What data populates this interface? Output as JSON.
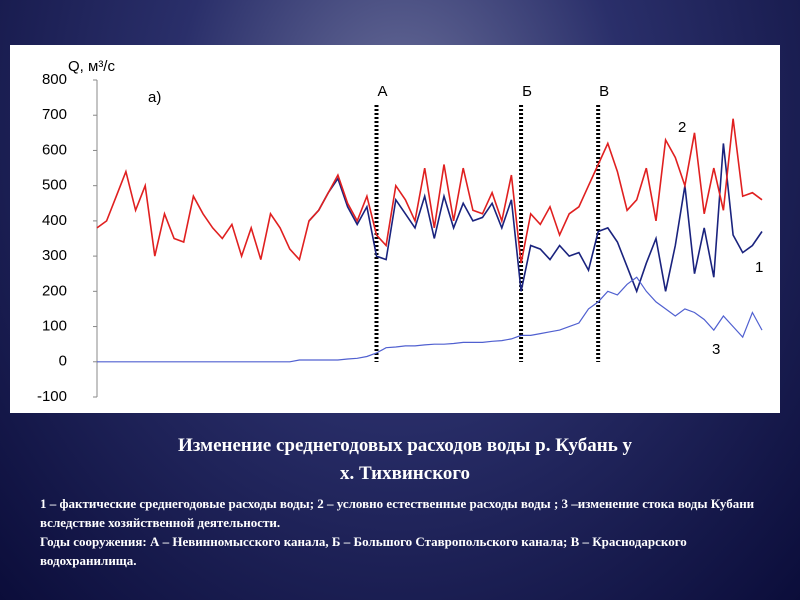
{
  "chart_data": {
    "type": "line",
    "title": "а)",
    "y_label": "Q, м³/с",
    "categories": [
      null,
      null,
      null,
      null,
      null,
      null,
      null,
      null,
      null,
      null,
      null,
      null,
      null,
      null,
      null,
      null,
      null,
      null,
      null,
      null,
      null,
      null,
      null,
      null,
      null,
      null,
      null,
      null,
      null,
      "А",
      null,
      null,
      null,
      null,
      null,
      null,
      null,
      null,
      null,
      null,
      null,
      null,
      null,
      null,
      "Б",
      null,
      null,
      null,
      null,
      null,
      null,
      null,
      "В",
      null,
      null,
      null,
      null,
      null,
      null,
      null,
      null,
      null,
      null,
      null,
      null,
      null,
      null,
      null,
      null,
      null
    ],
    "ylim": [
      -100,
      800
    ],
    "yticks": [
      -100,
      0,
      100,
      200,
      300,
      400,
      500,
      600,
      700,
      800
    ],
    "series": [
      {
        "name": "1",
        "color": "#1a237e",
        "values": [
          null,
          null,
          null,
          null,
          null,
          null,
          null,
          null,
          null,
          null,
          null,
          null,
          null,
          null,
          null,
          null,
          null,
          null,
          null,
          null,
          null,
          null,
          400,
          430,
          480,
          520,
          440,
          390,
          440,
          300,
          290,
          460,
          420,
          380,
          470,
          350,
          470,
          380,
          450,
          400,
          410,
          450,
          380,
          460,
          200,
          330,
          320,
          290,
          330,
          300,
          310,
          260,
          370,
          380,
          340,
          270,
          200,
          280,
          350,
          200,
          330,
          500,
          250,
          380,
          240,
          620,
          360,
          310,
          330,
          370
        ]
      },
      {
        "name": "2",
        "color": "#e02020",
        "values": [
          380,
          400,
          470,
          540,
          430,
          500,
          300,
          420,
          350,
          340,
          470,
          420,
          380,
          350,
          390,
          300,
          380,
          290,
          420,
          380,
          320,
          290,
          400,
          430,
          480,
          530,
          450,
          400,
          470,
          360,
          330,
          500,
          460,
          400,
          550,
          380,
          560,
          400,
          550,
          430,
          420,
          480,
          400,
          530,
          280,
          420,
          390,
          440,
          360,
          420,
          440,
          500,
          560,
          620,
          540,
          430,
          460,
          550,
          400,
          630,
          580,
          500,
          650,
          420,
          550,
          430,
          690,
          470,
          480,
          460
        ]
      },
      {
        "name": "3",
        "color": "#5060d0",
        "values": [
          0,
          0,
          0,
          0,
          0,
          0,
          0,
          0,
          0,
          0,
          0,
          0,
          0,
          0,
          0,
          0,
          0,
          0,
          0,
          0,
          0,
          5,
          5,
          5,
          5,
          5,
          8,
          10,
          15,
          25,
          40,
          42,
          45,
          45,
          48,
          50,
          50,
          52,
          55,
          55,
          55,
          58,
          60,
          65,
          75,
          75,
          80,
          85,
          90,
          100,
          110,
          150,
          170,
          200,
          190,
          220,
          240,
          200,
          170,
          150,
          130,
          150,
          140,
          120,
          90,
          130,
          100,
          70,
          140,
          90
        ]
      }
    ]
  },
  "caption": {
    "title_line1": "Изменение среднегодовых расходов воды р. Кубань у",
    "title_line2": "х. Тихвинского",
    "legend_text": "1 – фактические среднегодовые расходы воды; 2 – условно естественные расходы воды ; 3 –изменение стока воды Кубани  вследствие хозяйственной деятельности.",
    "years_text": "Годы сооружения: А – Невинномысского канала, Б – Большого Ставропольского канала; В – Краснодарского водохранилища."
  }
}
